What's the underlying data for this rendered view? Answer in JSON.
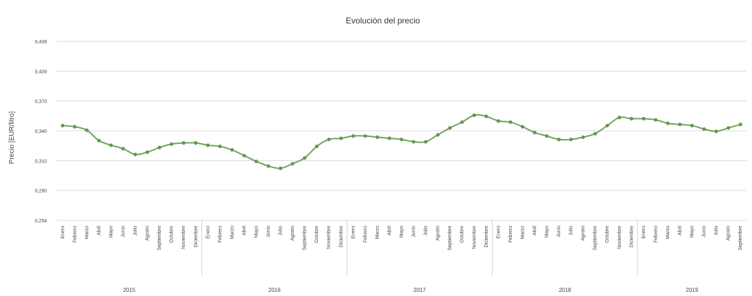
{
  "colors": {
    "series": "#70a15c",
    "marker": "#5e9a4f",
    "grid": "#d9d9d9",
    "separator": "#d0d0d0"
  },
  "chart_data": {
    "type": "line",
    "title": "Evolución del precio",
    "xlabel": "",
    "ylabel": "Precio [EUR/litro]",
    "ylim": [
      0.254,
      0.409
    ],
    "yticks": [
      "0,409",
      "0,409",
      "0,370",
      "0,340",
      "0,310",
      "0,280",
      "0,254"
    ],
    "grid": true,
    "legend": "none",
    "groups": [
      {
        "year": "2015",
        "months": [
          "Enero",
          "Febrero",
          "Marzo",
          "Abril",
          "Mayo",
          "Junio",
          "Julio",
          "Agosto",
          "Septiembre",
          "Octubre",
          "Noviembre",
          "Diciembre"
        ]
      },
      {
        "year": "2016",
        "months": [
          "Enero",
          "Febrero",
          "Marzo",
          "Abril",
          "Mayo",
          "Junio",
          "Julio",
          "Agosto",
          "Septiembre",
          "Octubre",
          "Noviembre",
          "Diciembre"
        ]
      },
      {
        "year": "2017",
        "months": [
          "Enero",
          "Febrero",
          "Marzo",
          "Abril",
          "Mayo",
          "Junio",
          "Julio",
          "Agosto",
          "Septiembre",
          "Octubre",
          "Noviembre",
          "Diciembre"
        ]
      },
      {
        "year": "2018",
        "months": [
          "Enero",
          "Febrero",
          "Marzo",
          "Abril",
          "Mayo",
          "Junio",
          "Julio",
          "Agosto",
          "Septiembre",
          "Octubre",
          "Noviembre",
          "Diciembre"
        ]
      },
      {
        "year": "2019",
        "months": [
          "Enero",
          "Febrero",
          "Marzo",
          "Abril",
          "Mayo",
          "Junio",
          "Julio",
          "Agosto",
          "Septiembre"
        ]
      }
    ],
    "values": [
      0.336,
      0.335,
      0.332,
      0.323,
      0.319,
      0.316,
      0.311,
      0.313,
      0.317,
      0.32,
      0.321,
      0.321,
      0.319,
      0.318,
      0.315,
      0.31,
      0.305,
      0.301,
      0.299,
      0.303,
      0.308,
      0.318,
      0.324,
      0.325,
      0.327,
      0.327,
      0.326,
      0.325,
      0.324,
      0.322,
      0.322,
      0.328,
      0.334,
      0.339,
      0.345,
      0.344,
      0.34,
      0.339,
      0.335,
      0.33,
      0.327,
      0.324,
      0.324,
      0.326,
      0.329,
      0.336,
      0.343,
      0.342,
      0.342,
      0.341,
      0.338,
      0.337,
      0.336,
      0.333,
      0.331,
      0.334,
      0.337
    ]
  }
}
